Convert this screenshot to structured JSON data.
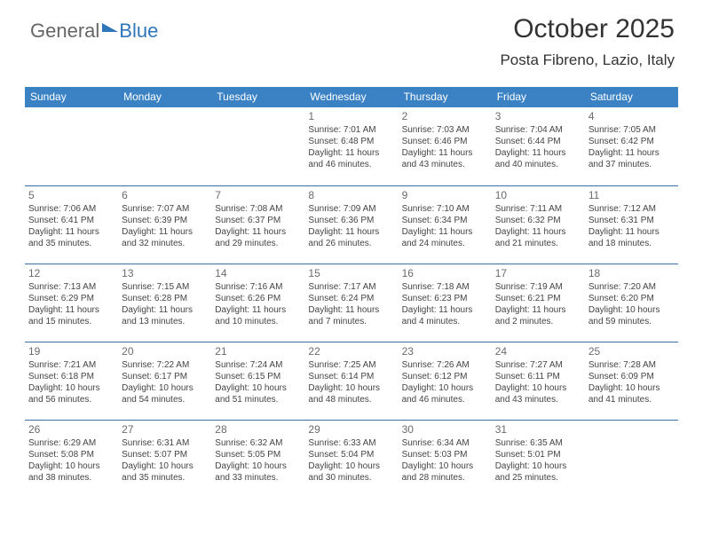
{
  "brand": {
    "general": "General",
    "blue": "Blue"
  },
  "title": "October 2025",
  "subtitle": "Posta Fibreno, Lazio, Italy",
  "colors": {
    "header_bg": "#3b82c4",
    "header_text": "#ffffff",
    "row_border": "#3a6fa6",
    "page_bg": "#ffffff",
    "text": "#444444",
    "daynum": "#6b6b6b",
    "brand_blue": "#2f76bb"
  },
  "typography": {
    "title_fontsize": 30,
    "subtitle_fontsize": 17,
    "header_fontsize": 12,
    "daynum_fontsize": 12,
    "body_fontsize": 10,
    "font_family": "Arial"
  },
  "layout": {
    "weeks": 5,
    "columns": 7,
    "cell_min_height": 88
  },
  "weekdays": [
    "Sunday",
    "Monday",
    "Tuesday",
    "Wednesday",
    "Thursday",
    "Friday",
    "Saturday"
  ],
  "days": [
    {
      "n": "",
      "sunrise": "",
      "sunset": "",
      "daylight": ""
    },
    {
      "n": "",
      "sunrise": "",
      "sunset": "",
      "daylight": ""
    },
    {
      "n": "",
      "sunrise": "",
      "sunset": "",
      "daylight": ""
    },
    {
      "n": "1",
      "sunrise": "Sunrise: 7:01 AM",
      "sunset": "Sunset: 6:48 PM",
      "daylight": "Daylight: 11 hours and 46 minutes."
    },
    {
      "n": "2",
      "sunrise": "Sunrise: 7:03 AM",
      "sunset": "Sunset: 6:46 PM",
      "daylight": "Daylight: 11 hours and 43 minutes."
    },
    {
      "n": "3",
      "sunrise": "Sunrise: 7:04 AM",
      "sunset": "Sunset: 6:44 PM",
      "daylight": "Daylight: 11 hours and 40 minutes."
    },
    {
      "n": "4",
      "sunrise": "Sunrise: 7:05 AM",
      "sunset": "Sunset: 6:42 PM",
      "daylight": "Daylight: 11 hours and 37 minutes."
    },
    {
      "n": "5",
      "sunrise": "Sunrise: 7:06 AM",
      "sunset": "Sunset: 6:41 PM",
      "daylight": "Daylight: 11 hours and 35 minutes."
    },
    {
      "n": "6",
      "sunrise": "Sunrise: 7:07 AM",
      "sunset": "Sunset: 6:39 PM",
      "daylight": "Daylight: 11 hours and 32 minutes."
    },
    {
      "n": "7",
      "sunrise": "Sunrise: 7:08 AM",
      "sunset": "Sunset: 6:37 PM",
      "daylight": "Daylight: 11 hours and 29 minutes."
    },
    {
      "n": "8",
      "sunrise": "Sunrise: 7:09 AM",
      "sunset": "Sunset: 6:36 PM",
      "daylight": "Daylight: 11 hours and 26 minutes."
    },
    {
      "n": "9",
      "sunrise": "Sunrise: 7:10 AM",
      "sunset": "Sunset: 6:34 PM",
      "daylight": "Daylight: 11 hours and 24 minutes."
    },
    {
      "n": "10",
      "sunrise": "Sunrise: 7:11 AM",
      "sunset": "Sunset: 6:32 PM",
      "daylight": "Daylight: 11 hours and 21 minutes."
    },
    {
      "n": "11",
      "sunrise": "Sunrise: 7:12 AM",
      "sunset": "Sunset: 6:31 PM",
      "daylight": "Daylight: 11 hours and 18 minutes."
    },
    {
      "n": "12",
      "sunrise": "Sunrise: 7:13 AM",
      "sunset": "Sunset: 6:29 PM",
      "daylight": "Daylight: 11 hours and 15 minutes."
    },
    {
      "n": "13",
      "sunrise": "Sunrise: 7:15 AM",
      "sunset": "Sunset: 6:28 PM",
      "daylight": "Daylight: 11 hours and 13 minutes."
    },
    {
      "n": "14",
      "sunrise": "Sunrise: 7:16 AM",
      "sunset": "Sunset: 6:26 PM",
      "daylight": "Daylight: 11 hours and 10 minutes."
    },
    {
      "n": "15",
      "sunrise": "Sunrise: 7:17 AM",
      "sunset": "Sunset: 6:24 PM",
      "daylight": "Daylight: 11 hours and 7 minutes."
    },
    {
      "n": "16",
      "sunrise": "Sunrise: 7:18 AM",
      "sunset": "Sunset: 6:23 PM",
      "daylight": "Daylight: 11 hours and 4 minutes."
    },
    {
      "n": "17",
      "sunrise": "Sunrise: 7:19 AM",
      "sunset": "Sunset: 6:21 PM",
      "daylight": "Daylight: 11 hours and 2 minutes."
    },
    {
      "n": "18",
      "sunrise": "Sunrise: 7:20 AM",
      "sunset": "Sunset: 6:20 PM",
      "daylight": "Daylight: 10 hours and 59 minutes."
    },
    {
      "n": "19",
      "sunrise": "Sunrise: 7:21 AM",
      "sunset": "Sunset: 6:18 PM",
      "daylight": "Daylight: 10 hours and 56 minutes."
    },
    {
      "n": "20",
      "sunrise": "Sunrise: 7:22 AM",
      "sunset": "Sunset: 6:17 PM",
      "daylight": "Daylight: 10 hours and 54 minutes."
    },
    {
      "n": "21",
      "sunrise": "Sunrise: 7:24 AM",
      "sunset": "Sunset: 6:15 PM",
      "daylight": "Daylight: 10 hours and 51 minutes."
    },
    {
      "n": "22",
      "sunrise": "Sunrise: 7:25 AM",
      "sunset": "Sunset: 6:14 PM",
      "daylight": "Daylight: 10 hours and 48 minutes."
    },
    {
      "n": "23",
      "sunrise": "Sunrise: 7:26 AM",
      "sunset": "Sunset: 6:12 PM",
      "daylight": "Daylight: 10 hours and 46 minutes."
    },
    {
      "n": "24",
      "sunrise": "Sunrise: 7:27 AM",
      "sunset": "Sunset: 6:11 PM",
      "daylight": "Daylight: 10 hours and 43 minutes."
    },
    {
      "n": "25",
      "sunrise": "Sunrise: 7:28 AM",
      "sunset": "Sunset: 6:09 PM",
      "daylight": "Daylight: 10 hours and 41 minutes."
    },
    {
      "n": "26",
      "sunrise": "Sunrise: 6:29 AM",
      "sunset": "Sunset: 5:08 PM",
      "daylight": "Daylight: 10 hours and 38 minutes."
    },
    {
      "n": "27",
      "sunrise": "Sunrise: 6:31 AM",
      "sunset": "Sunset: 5:07 PM",
      "daylight": "Daylight: 10 hours and 35 minutes."
    },
    {
      "n": "28",
      "sunrise": "Sunrise: 6:32 AM",
      "sunset": "Sunset: 5:05 PM",
      "daylight": "Daylight: 10 hours and 33 minutes."
    },
    {
      "n": "29",
      "sunrise": "Sunrise: 6:33 AM",
      "sunset": "Sunset: 5:04 PM",
      "daylight": "Daylight: 10 hours and 30 minutes."
    },
    {
      "n": "30",
      "sunrise": "Sunrise: 6:34 AM",
      "sunset": "Sunset: 5:03 PM",
      "daylight": "Daylight: 10 hours and 28 minutes."
    },
    {
      "n": "31",
      "sunrise": "Sunrise: 6:35 AM",
      "sunset": "Sunset: 5:01 PM",
      "daylight": "Daylight: 10 hours and 25 minutes."
    },
    {
      "n": "",
      "sunrise": "",
      "sunset": "",
      "daylight": ""
    }
  ]
}
